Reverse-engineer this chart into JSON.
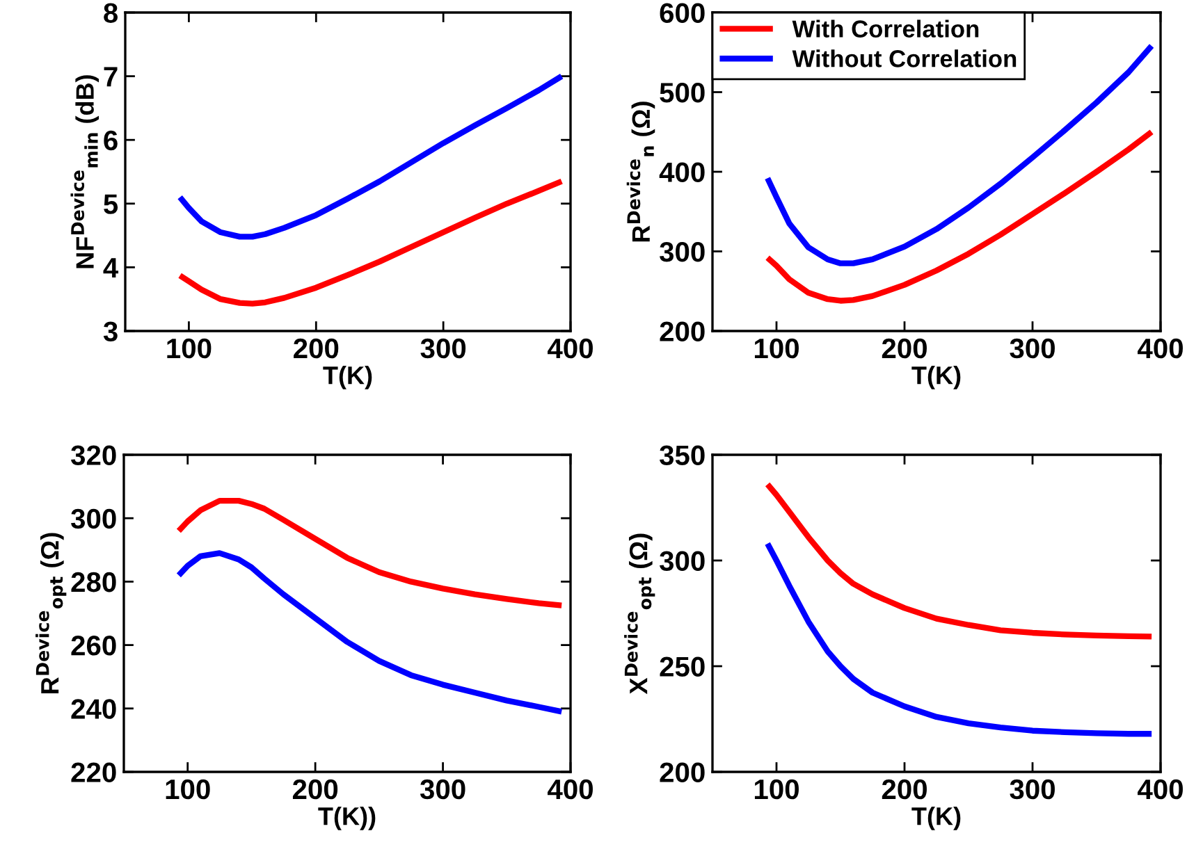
{
  "chart_data": [
    {
      "type": "line",
      "xlabel": "T(K)",
      "ylabel": "NF$^{Device}$$_{min}$ (dB)",
      "x": [
        93,
        100,
        110,
        125,
        140,
        150,
        160,
        175,
        200,
        225,
        250,
        275,
        300,
        325,
        350,
        375,
        393
      ],
      "xlim": [
        50,
        400
      ],
      "xticks": [
        100,
        200,
        300,
        400
      ],
      "ylim": [
        3,
        8
      ],
      "yticks": [
        3,
        4,
        5,
        6,
        7,
        8
      ],
      "grid": false,
      "legend": false,
      "series": [
        {
          "color": "#ff0000",
          "values": [
            3.87,
            3.78,
            3.65,
            3.5,
            3.44,
            3.43,
            3.45,
            3.52,
            3.68,
            3.88,
            4.09,
            4.32,
            4.55,
            4.78,
            5.0,
            5.2,
            5.35
          ]
        },
        {
          "color": "#0000ff",
          "values": [
            5.1,
            4.93,
            4.72,
            4.55,
            4.48,
            4.48,
            4.52,
            4.62,
            4.82,
            5.08,
            5.35,
            5.65,
            5.95,
            6.23,
            6.5,
            6.78,
            7.0
          ]
        }
      ]
    },
    {
      "type": "line",
      "xlabel": "T(K)",
      "ylabel": "R$^{Device}$$_{n}$ (Ω)",
      "x": [
        93,
        100,
        110,
        125,
        140,
        150,
        160,
        175,
        200,
        225,
        250,
        275,
        300,
        325,
        350,
        375,
        393
      ],
      "xlim": [
        50,
        400
      ],
      "xticks": [
        100,
        200,
        300,
        400
      ],
      "ylim": [
        200,
        600
      ],
      "yticks": [
        200,
        300,
        400,
        500,
        600
      ],
      "grid": false,
      "legend": "top left",
      "series": [
        {
          "name": "With Correlation",
          "color": "#ff0000",
          "values": [
            292,
            282,
            265,
            248,
            240,
            238,
            239,
            244,
            258,
            276,
            297,
            321,
            347,
            373,
            400,
            428,
            450
          ]
        },
        {
          "name": "Without Correlation",
          "color": "#0000ff",
          "values": [
            392,
            368,
            335,
            305,
            290,
            285,
            285,
            290,
            306,
            328,
            355,
            385,
            418,
            452,
            487,
            525,
            558
          ]
        }
      ]
    },
    {
      "type": "line",
      "xlabel": "T(K))",
      "ylabel": "R$^{Device}$$_{opt}$ (Ω)",
      "x": [
        93,
        100,
        110,
        125,
        140,
        150,
        160,
        175,
        200,
        225,
        250,
        275,
        300,
        325,
        350,
        375,
        393
      ],
      "xlim": [
        50,
        400
      ],
      "xticks": [
        100,
        200,
        300,
        400
      ],
      "ylim": [
        220,
        320
      ],
      "yticks": [
        220,
        240,
        260,
        280,
        300,
        320
      ],
      "grid": false,
      "legend": false,
      "series": [
        {
          "color": "#ff0000",
          "values": [
            296,
            299,
            302.5,
            305.5,
            305.5,
            304.5,
            303,
            299.5,
            293.5,
            287.5,
            283,
            280,
            277.8,
            276,
            274.5,
            273.2,
            272.5
          ]
        },
        {
          "color": "#0000ff",
          "values": [
            282,
            285,
            288,
            289,
            287,
            284.5,
            281,
            276,
            268.5,
            261,
            255,
            250.5,
            247.5,
            245,
            242.5,
            240.5,
            239
          ]
        }
      ]
    },
    {
      "type": "line",
      "xlabel": "T(K)",
      "ylabel": "X$^{Device}$$_{opt}$ (Ω)",
      "x": [
        93,
        100,
        110,
        125,
        140,
        150,
        160,
        175,
        200,
        225,
        250,
        275,
        300,
        325,
        350,
        375,
        393
      ],
      "xlim": [
        50,
        400
      ],
      "xticks": [
        100,
        200,
        300,
        400
      ],
      "ylim": [
        200,
        350
      ],
      "yticks": [
        200,
        250,
        300,
        350
      ],
      "grid": false,
      "legend": false,
      "series": [
        {
          "color": "#ff0000",
          "values": [
            336,
            331,
            323,
            311,
            300,
            294,
            289,
            284,
            277.5,
            272.5,
            269.5,
            267,
            265.8,
            265,
            264.5,
            264.2,
            264
          ]
        },
        {
          "color": "#0000ff",
          "values": [
            308,
            300,
            288,
            271,
            257,
            250,
            244,
            237.5,
            231,
            226,
            223,
            221,
            219.5,
            218.8,
            218.3,
            218,
            218
          ]
        }
      ]
    }
  ]
}
